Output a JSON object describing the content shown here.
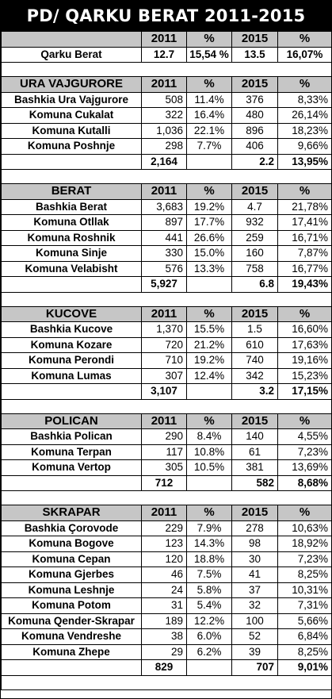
{
  "title": "PD/ QARKU BERAT 2011-2015",
  "header": {
    "y2011": "2011",
    "pct": "%",
    "y2015": "2015"
  },
  "qarku": {
    "name": "Qarku Berat",
    "v2011": "12.7",
    "p2011": "15,54 %",
    "v2015": "13.5",
    "p2015": "16,07%"
  },
  "sections": [
    {
      "name": "URA VAJGURORE",
      "rows": [
        {
          "name": "Bashkia Ura Vajgurore",
          "v2011": "508",
          "p2011": "11.4%",
          "v2015": "376",
          "p2015": "8,33%"
        },
        {
          "name": "Komuna Cukalat",
          "v2011": "322",
          "p2011": "16.4%",
          "v2015": "480",
          "p2015": "26,14%"
        },
        {
          "name": "Komuna Kutalli",
          "v2011": "1,036",
          "p2011": "22.1%",
          "v2015": "896",
          "p2015": "18,23%"
        },
        {
          "name": "Komuna Poshnje",
          "v2011": "298",
          "p2011": "7.7%",
          "v2015": "406",
          "p2015": "9,66%"
        }
      ],
      "total": {
        "v2011": "2,164",
        "v2015": "2.2",
        "p2015": "13,95%"
      }
    },
    {
      "name": "BERAT",
      "rows": [
        {
          "name": "Bashkia Berat",
          "v2011": "3,683",
          "p2011": "19.2%",
          "v2015": "4.7",
          "p2015": "21,78%"
        },
        {
          "name": "Komuna Otllak",
          "v2011": "897",
          "p2011": "17.7%",
          "v2015": "932",
          "p2015": "17,41%"
        },
        {
          "name": "Komuna Roshnik",
          "v2011": "441",
          "p2011": "26.6%",
          "v2015": "259",
          "p2015": "16,71%"
        },
        {
          "name": "Komuna Sinje",
          "v2011": "330",
          "p2011": "15.0%",
          "v2015": "160",
          "p2015": "7,87%"
        },
        {
          "name": "Komuna Velabisht",
          "v2011": "576",
          "p2011": "13.3%",
          "v2015": "758",
          "p2015": "16,77%"
        }
      ],
      "total": {
        "v2011": "5,927",
        "v2015": "6.8",
        "p2015": "19,43%"
      }
    },
    {
      "name": "KUCOVE",
      "rows": [
        {
          "name": "Bashkia Kucove",
          "v2011": "1,370",
          "p2011": "15.5%",
          "v2015": "1.5",
          "p2015": "16,60%"
        },
        {
          "name": "Komuna Kozare",
          "v2011": "720",
          "p2011": "21.2%",
          "v2015": "610",
          "p2015": "17,63%"
        },
        {
          "name": "Komuna Perondi",
          "v2011": "710",
          "p2011": "19.2%",
          "v2015": "740",
          "p2015": "19,16%"
        },
        {
          "name": "Komuna Lumas",
          "v2011": "307",
          "p2011": "12.4%",
          "v2015": "342",
          "p2015": "15,23%"
        }
      ],
      "total": {
        "v2011": "3,107",
        "v2015": "3.2",
        "p2015": "17,15%"
      }
    },
    {
      "name": "POLICAN",
      "rows": [
        {
          "name": "Bashkia Polican",
          "v2011": "290",
          "p2011": "8.4%",
          "v2015": "140",
          "p2015": "4,55%"
        },
        {
          "name": "Komuna Terpan",
          "v2011": "117",
          "p2011": "10.8%",
          "v2015": "61",
          "p2015": "7,23%"
        },
        {
          "name": "Komuna Vertop",
          "v2011": "305",
          "p2011": "10.5%",
          "v2015": "381",
          "p2015": "13,69%"
        }
      ],
      "total": {
        "v2011": "712",
        "v2015": "582",
        "p2015": "8,68%"
      }
    },
    {
      "name": "SKRAPAR",
      "rows": [
        {
          "name": "Bashkia Çorovode",
          "v2011": "229",
          "p2011": "7.9%",
          "v2015": "278",
          "p2015": "10,63%"
        },
        {
          "name": "Komuna Bogove",
          "v2011": "123",
          "p2011": "14.3%",
          "v2015": "98",
          "p2015": "18,92%"
        },
        {
          "name": "Komuna Cepan",
          "v2011": "120",
          "p2011": "18.8%",
          "v2015": "30",
          "p2015": "7,23%"
        },
        {
          "name": "Komuna Gjerbes",
          "v2011": "46",
          "p2011": "7.5%",
          "v2015": "41",
          "p2015": "8,25%"
        },
        {
          "name": "Komuna Leshnje",
          "v2011": "24",
          "p2011": "5.8%",
          "v2015": "37",
          "p2015": "10,31%"
        },
        {
          "name": "Komuna Potom",
          "v2011": "31",
          "p2011": "5.4%",
          "v2015": "32",
          "p2015": "7,31%"
        },
        {
          "name": "Komuna Qender-Skrapar",
          "v2011": "189",
          "p2011": "12.2%",
          "v2015": "100",
          "p2015": "5,66%"
        },
        {
          "name": "Komuna Vendreshe",
          "v2011": "38",
          "p2011": "6.0%",
          "v2015": "52",
          "p2015": "6,84%"
        },
        {
          "name": "Komuna Zhepe",
          "v2011": "29",
          "p2011": "6.2%",
          "v2015": "39",
          "p2015": "8,25%"
        }
      ],
      "total": {
        "v2011": "829",
        "v2015": "707",
        "p2015": "9,01%"
      }
    }
  ]
}
